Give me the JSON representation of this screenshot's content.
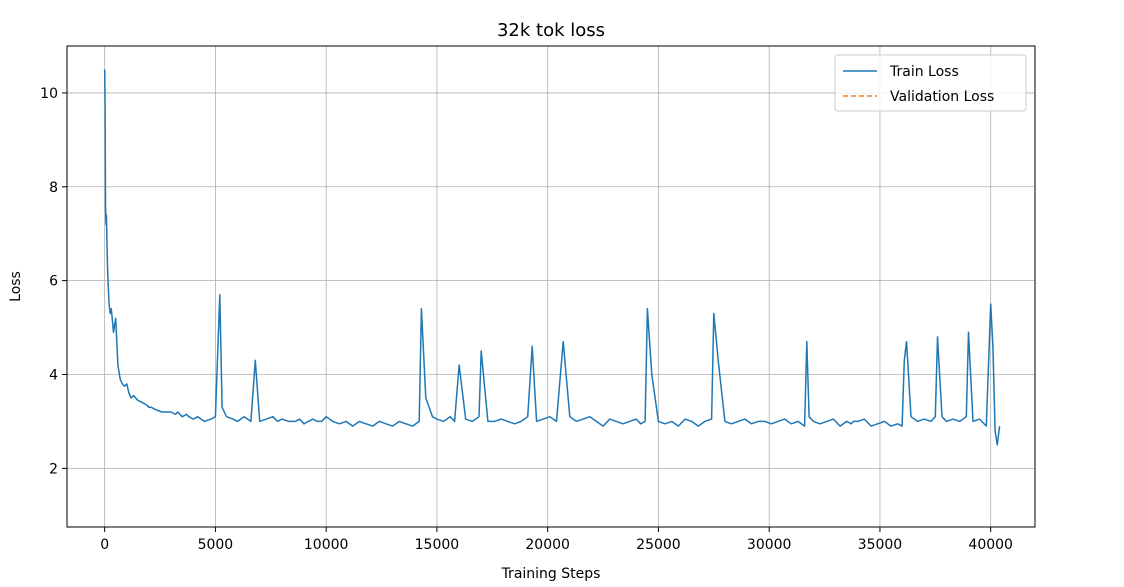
{
  "chart_data": {
    "type": "line",
    "title": "32k tok loss",
    "xlabel": "Training Steps",
    "ylabel": "Loss",
    "xlim": [
      -1700,
      42000
    ],
    "ylim": [
      0.75,
      11.0
    ],
    "xticks": [
      0,
      5000,
      10000,
      15000,
      20000,
      25000,
      30000,
      35000,
      40000
    ],
    "xtick_labels": [
      "0",
      "5000",
      "10000",
      "15000",
      "20000",
      "25000",
      "30000",
      "35000",
      "40000"
    ],
    "yticks": [
      2,
      4,
      6,
      8,
      10
    ],
    "ytick_labels": [
      "2",
      "4",
      "6",
      "8",
      "10"
    ],
    "grid": true,
    "legend_position": "top-right",
    "series": [
      {
        "name": "Train Loss",
        "color": "#1f77b4",
        "style": "solid",
        "x": [
          0,
          20,
          40,
          60,
          80,
          100,
          130,
          160,
          200,
          250,
          300,
          400,
          500,
          600,
          700,
          800,
          900,
          1000,
          1100,
          1200,
          1300,
          1500,
          1700,
          1900,
          2000,
          2100,
          2300,
          2600,
          3000,
          3200,
          3300,
          3500,
          3700,
          3800,
          4000,
          4200,
          4500,
          4800,
          5000,
          5200,
          5300,
          5500,
          5800,
          6000,
          6300,
          6600,
          6800,
          7000,
          7300,
          7600,
          7800,
          8000,
          8300,
          8600,
          8800,
          9000,
          9200,
          9400,
          9600,
          9800,
          10000,
          10300,
          10600,
          10900,
          11200,
          11500,
          11800,
          12100,
          12400,
          12700,
          13000,
          13300,
          13600,
          13900,
          14200,
          14300,
          14500,
          14800,
          15000,
          15300,
          15600,
          15800,
          16000,
          16300,
          16600,
          16900,
          17000,
          17300,
          17600,
          17900,
          18200,
          18500,
          18800,
          19100,
          19300,
          19500,
          19800,
          20100,
          20400,
          20700,
          21000,
          21300,
          21600,
          21900,
          22200,
          22500,
          22800,
          23100,
          23400,
          23700,
          24000,
          24200,
          24400,
          24500,
          24700,
          25000,
          25300,
          25600,
          25900,
          26200,
          26500,
          26800,
          27100,
          27400,
          27500,
          27700,
          28000,
          28300,
          28600,
          28900,
          29200,
          29500,
          29800,
          30100,
          30400,
          30700,
          31000,
          31300,
          31600,
          31700,
          31800,
          32000,
          32300,
          32600,
          32900,
          33200,
          33500,
          33700,
          33800,
          34000,
          34300,
          34600,
          34900,
          35200,
          35500,
          35800,
          36000,
          36100,
          36200,
          36400,
          36700,
          37000,
          37300,
          37500,
          37600,
          37800,
          38000,
          38300,
          38600,
          38900,
          39000,
          39200,
          39500,
          39800,
          40000,
          40100,
          40200,
          40300,
          40400
        ],
        "y": [
          10.5,
          9.7,
          7.6,
          7.2,
          7.4,
          6.9,
          6.3,
          5.9,
          5.5,
          5.3,
          5.4,
          4.9,
          5.2,
          4.2,
          3.9,
          3.8,
          3.75,
          3.8,
          3.6,
          3.5,
          3.55,
          3.45,
          3.4,
          3.35,
          3.3,
          3.3,
          3.25,
          3.2,
          3.2,
          3.15,
          3.2,
          3.1,
          3.15,
          3.1,
          3.05,
          3.1,
          3.0,
          3.05,
          3.1,
          5.7,
          3.3,
          3.1,
          3.05,
          3.0,
          3.1,
          3.0,
          4.3,
          3.0,
          3.05,
          3.1,
          3.0,
          3.05,
          3.0,
          3.0,
          3.05,
          2.95,
          3.0,
          3.05,
          3.0,
          3.0,
          3.1,
          3.0,
          2.95,
          3.0,
          2.9,
          3.0,
          2.95,
          2.9,
          3.0,
          2.95,
          2.9,
          3.0,
          2.95,
          2.9,
          3.0,
          5.4,
          3.5,
          3.1,
          3.05,
          3.0,
          3.1,
          3.0,
          4.2,
          3.05,
          3.0,
          3.1,
          4.5,
          3.0,
          3.0,
          3.05,
          3.0,
          2.95,
          3.0,
          3.1,
          4.6,
          3.0,
          3.05,
          3.1,
          3.0,
          4.7,
          3.1,
          3.0,
          3.05,
          3.1,
          3.0,
          2.9,
          3.05,
          3.0,
          2.95,
          3.0,
          3.05,
          2.95,
          3.0,
          5.4,
          4.0,
          3.0,
          2.95,
          3.0,
          2.9,
          3.05,
          3.0,
          2.9,
          3.0,
          3.05,
          5.3,
          4.3,
          3.0,
          2.95,
          3.0,
          3.05,
          2.95,
          3.0,
          3.0,
          2.95,
          3.0,
          3.05,
          2.95,
          3.0,
          2.9,
          4.7,
          3.1,
          3.0,
          2.95,
          3.0,
          3.05,
          2.9,
          3.0,
          2.95,
          3.0,
          3.0,
          3.05,
          2.9,
          2.95,
          3.0,
          2.9,
          2.95,
          2.9,
          4.3,
          4.7,
          3.1,
          3.0,
          3.05,
          3.0,
          3.1,
          4.8,
          3.1,
          3.0,
          3.05,
          3.0,
          3.1,
          4.9,
          3.0,
          3.05,
          2.9,
          5.5,
          4.6,
          2.8,
          2.5,
          2.9
        ]
      },
      {
        "name": "Validation Loss",
        "color": "#ff7f0e",
        "style": "dashed",
        "x": [],
        "y": []
      }
    ]
  }
}
